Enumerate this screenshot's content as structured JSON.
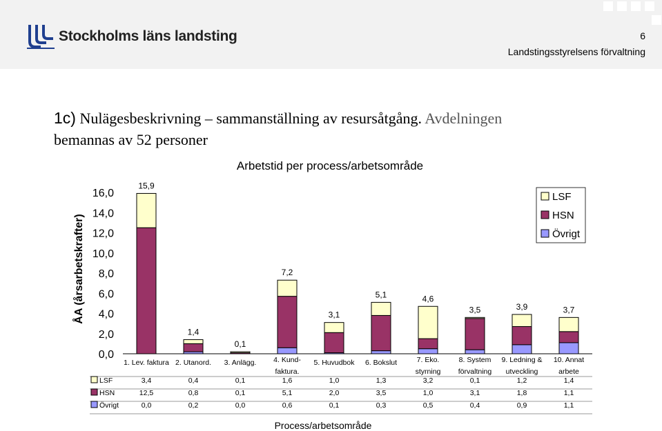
{
  "header": {
    "logo_text": "Stockholms läns landsting",
    "page_number": "6",
    "department": "Landstingsstyrelsens förvaltning"
  },
  "slide": {
    "heading_prefix": "1c)",
    "heading_main": "Nulägesbeskrivning – sammanställning av resursåtgång.",
    "heading_rest": "Avdelningen",
    "heading_line2": "bemannas av 52 personer"
  },
  "colors": {
    "LSF": "#ffffcc",
    "HSN": "#993366",
    "Övrigt": "#9999ff"
  },
  "chart_data": {
    "type": "bar",
    "stacked": true,
    "title": "Arbetstid per process/arbetsområde",
    "xlabel": "Process/arbetsområde",
    "ylabel": "ÅA (årsarbetskrafter)",
    "ylim": [
      0,
      16
    ],
    "yticks": [
      "0,0",
      "2,0",
      "4,0",
      "6,0",
      "8,0",
      "10,0",
      "12,0",
      "14,0",
      "16,0"
    ],
    "categories": [
      [
        "1. Lev. faktura"
      ],
      [
        "2. Utanord."
      ],
      [
        "3. Anlägg."
      ],
      [
        "4. Kund-",
        "faktura."
      ],
      [
        "5. Huvudbok"
      ],
      [
        "6. Bokslut"
      ],
      [
        "7. Eko.",
        "styrning"
      ],
      [
        "8. System",
        "förvaltning"
      ],
      [
        "9. Ledning &",
        "utveckling"
      ],
      [
        "10. Annat",
        "arbete"
      ]
    ],
    "series": [
      {
        "name": "LSF",
        "values": [
          3.4,
          0.4,
          0.1,
          1.6,
          1.0,
          1.3,
          3.2,
          0.1,
          1.2,
          1.4
        ],
        "labels": [
          "3,4",
          "0,4",
          "0,1",
          "1,6",
          "1,0",
          "1,3",
          "3,2",
          "0,1",
          "1,2",
          "1,4"
        ]
      },
      {
        "name": "HSN",
        "values": [
          12.5,
          0.8,
          0.1,
          5.1,
          2.0,
          3.5,
          1.0,
          3.1,
          1.8,
          1.1
        ],
        "labels": [
          "12,5",
          "0,8",
          "0,1",
          "5,1",
          "2,0",
          "3,5",
          "1,0",
          "3,1",
          "1,8",
          "1,1"
        ]
      },
      {
        "name": "Övrigt",
        "values": [
          0.0,
          0.2,
          0.0,
          0.6,
          0.1,
          0.3,
          0.5,
          0.4,
          0.9,
          1.1
        ],
        "labels": [
          "0,0",
          "0,2",
          "0,0",
          "0,6",
          "0,1",
          "0,3",
          "0,5",
          "0,4",
          "0,9",
          "1,1"
        ]
      }
    ],
    "totals": [
      "15,9",
      "1,4",
      "0,1",
      "7,2",
      "3,1",
      "5,1",
      "4,6",
      "3,5",
      "3,9",
      "3,7"
    ],
    "legend": [
      "LSF",
      "HSN",
      "Övrigt"
    ],
    "legend_position": "top-right",
    "data_table": true
  }
}
